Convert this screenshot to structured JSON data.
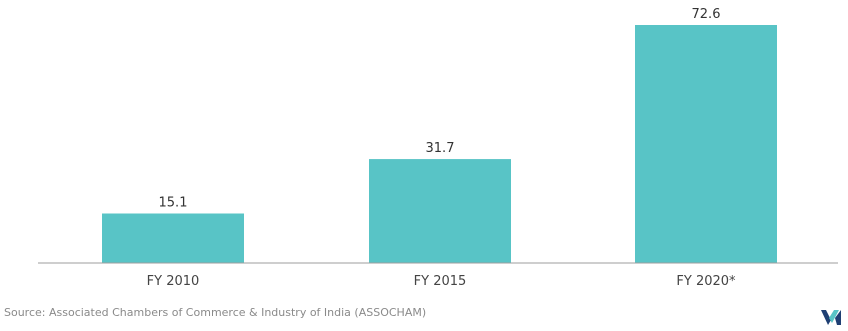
{
  "chart_data": {
    "type": "bar",
    "categories": [
      "FY 2010",
      "FY 2015",
      "FY 2020*"
    ],
    "values": [
      15.1,
      31.7,
      72.6
    ],
    "value_labels": [
      "15.1",
      "31.7",
      "72.6"
    ],
    "title": "",
    "xlabel": "",
    "ylabel": "",
    "ylim": [
      0,
      72.6
    ],
    "grid": false,
    "legend": "none",
    "bar_color": "#58c4c6",
    "axis_color": "#9e9e9e"
  },
  "footer": {
    "source": "Source: Associated Chambers of Commerce & Industry of India (ASSOCHAM)",
    "logo_icon": "brand-logo-icon",
    "logo_colors": [
      "#1f3f73",
      "#58c4c6"
    ]
  }
}
